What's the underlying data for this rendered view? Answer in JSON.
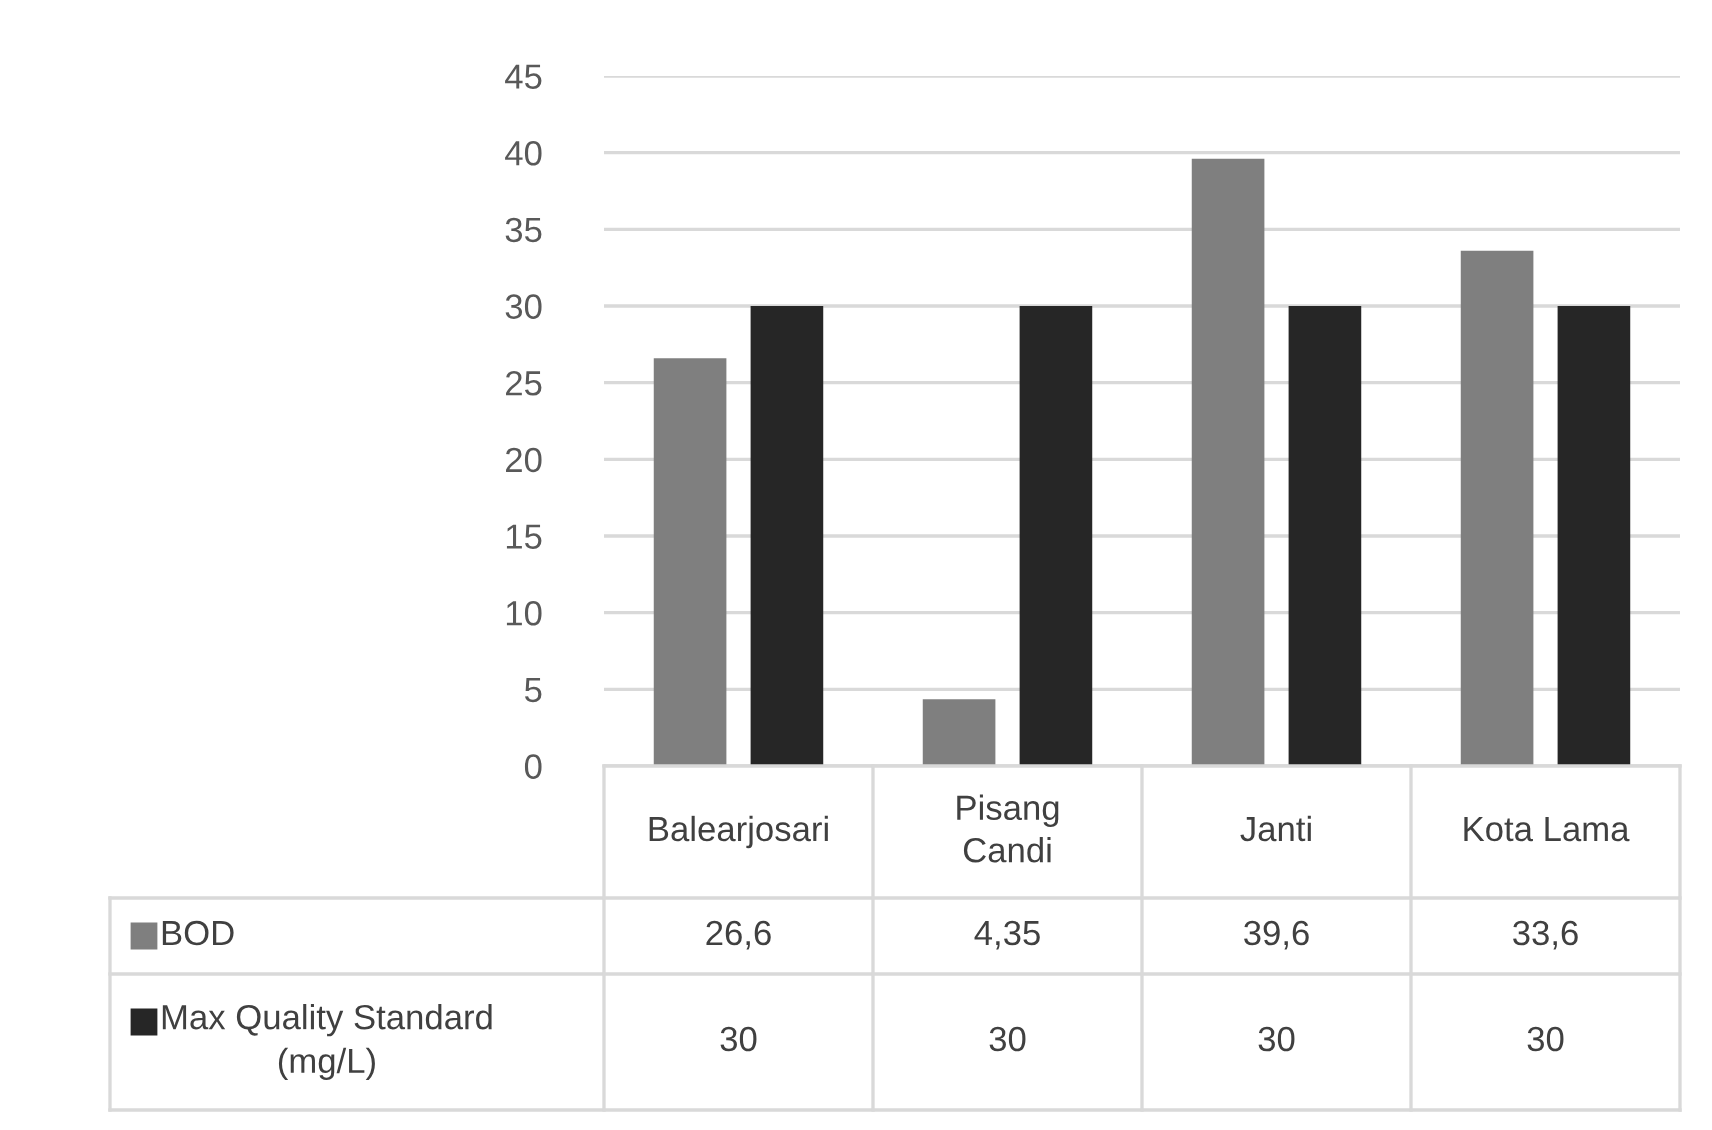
{
  "chart_data": {
    "type": "bar",
    "categories": [
      "Balearjosari",
      "Pisang\nCandi",
      "Janti",
      "Kota Lama"
    ],
    "series": [
      {
        "name": "BOD",
        "color": "#7f7f7f",
        "values": [
          26.6,
          4.35,
          39.6,
          33.6
        ],
        "value_labels": [
          "26,6",
          "4,35",
          "39,6",
          "33,6"
        ]
      },
      {
        "name": "Max Quality Standard\n(mg/L)",
        "color": "#262626",
        "values": [
          30,
          30,
          30,
          30
        ],
        "value_labels": [
          "30",
          "30",
          "30",
          "30"
        ]
      }
    ],
    "ylim": [
      0,
      45
    ],
    "yticks": [
      0,
      5,
      10,
      15,
      20,
      25,
      30,
      35,
      40,
      45
    ],
    "grid": "y",
    "legend": "bottom"
  }
}
